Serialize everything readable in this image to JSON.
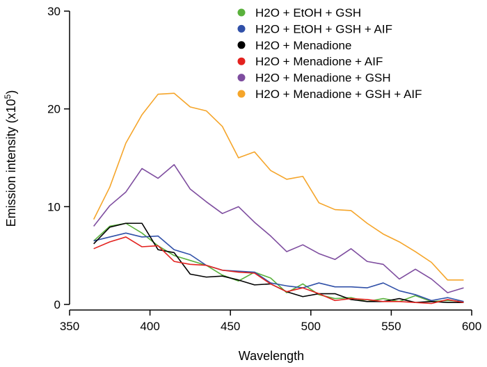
{
  "chart_data": {
    "type": "line",
    "title": "",
    "xlabel": "Wavelength",
    "ylabel_main": "Emission intensity (x10",
    "ylabel_sup": "5",
    "ylabel_close": ")",
    "xlim": [
      350,
      600
    ],
    "ylim": [
      0,
      30
    ],
    "xticks": [
      350,
      400,
      450,
      500,
      550,
      600
    ],
    "yticks": [
      0,
      10,
      20,
      30
    ],
    "grid": false,
    "legend_position": "top-right",
    "x": [
      365,
      375,
      385,
      395,
      405,
      415,
      425,
      435,
      445,
      455,
      465,
      475,
      485,
      495,
      505,
      515,
      525,
      535,
      545,
      555,
      565,
      575,
      585,
      595
    ],
    "series": [
      {
        "name": "H2O + EtOH + GSH",
        "color": "#5ab13c",
        "values": [
          6.5,
          8.0,
          8.3,
          7.3,
          6.0,
          5.0,
          4.5,
          4.0,
          3.0,
          2.4,
          3.3,
          2.7,
          1.2,
          2.1,
          1.0,
          0.6,
          0.7,
          0.3,
          0.6,
          0.3,
          0.9,
          0.3,
          0.4,
          0.3
        ]
      },
      {
        "name": "H2O + EtOH + GSH + AIF",
        "color": "#3050a8",
        "values": [
          6.5,
          6.9,
          7.3,
          6.9,
          7.0,
          5.6,
          5.1,
          4.0,
          3.5,
          3.4,
          3.3,
          2.2,
          1.9,
          1.7,
          2.2,
          1.8,
          1.8,
          1.7,
          2.2,
          1.4,
          1.0,
          0.4,
          0.7,
          0.3
        ]
      },
      {
        "name": "H2O + Menadione",
        "color": "#000000",
        "values": [
          6.2,
          7.9,
          8.3,
          8.3,
          5.6,
          5.3,
          3.1,
          2.8,
          2.9,
          2.5,
          2.0,
          2.1,
          1.3,
          0.8,
          1.1,
          1.1,
          0.5,
          0.3,
          0.3,
          0.6,
          0.2,
          0.3,
          0.2,
          0.2
        ]
      },
      {
        "name": "H2O + Menadione + AIF",
        "color": "#e3221f",
        "values": [
          5.7,
          6.4,
          6.9,
          5.9,
          6.0,
          4.4,
          4.1,
          4.0,
          3.5,
          3.3,
          3.2,
          2.1,
          1.3,
          1.7,
          1.1,
          0.4,
          0.6,
          0.5,
          0.3,
          0.3,
          0.2,
          0.1,
          0.5,
          0.2
        ]
      },
      {
        "name": "H2O + Menadione + GSH",
        "color": "#7e4d9f",
        "values": [
          8.0,
          10.1,
          11.5,
          13.9,
          12.9,
          14.3,
          11.8,
          10.5,
          9.3,
          10.0,
          8.4,
          7.0,
          5.4,
          6.1,
          5.2,
          4.6,
          5.7,
          4.4,
          4.1,
          2.6,
          3.6,
          2.6,
          1.2,
          1.7
        ]
      },
      {
        "name": "H2O + Menadione + GSH + AIF",
        "color": "#f5a52a",
        "values": [
          8.7,
          12.0,
          16.5,
          19.4,
          21.5,
          21.6,
          20.2,
          19.8,
          18.2,
          15.0,
          15.6,
          13.7,
          12.8,
          13.1,
          10.4,
          9.7,
          9.6,
          8.3,
          7.2,
          6.4,
          5.4,
          4.3,
          2.5,
          2.5
        ]
      }
    ]
  }
}
